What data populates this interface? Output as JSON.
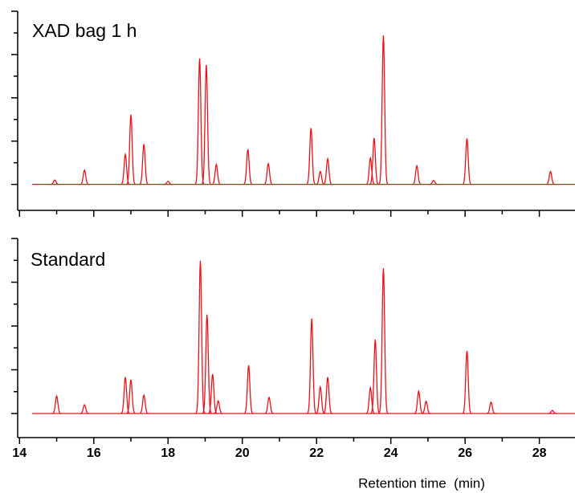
{
  "chart_data": [
    {
      "type": "peak",
      "title": "XAD bag 1 h",
      "color": "#e8141c",
      "xlim": [
        13.95,
        28.96
      ],
      "xticks": [
        14,
        16,
        18,
        20,
        22,
        24,
        26,
        28
      ],
      "ylim": [
        -0.6,
        4
      ],
      "yticks": [
        0,
        1,
        2,
        3,
        4
      ],
      "x": [
        14.95,
        15.75,
        16.85,
        17.0,
        17.35,
        18.0,
        18.85,
        19.03,
        19.3,
        20.15,
        20.7,
        21.85,
        22.1,
        22.3,
        23.45,
        23.55,
        23.8,
        24.7,
        25.15,
        26.05,
        28.3
      ],
      "values": [
        0.1,
        0.33,
        0.69,
        1.61,
        0.93,
        0.07,
        2.91,
        2.76,
        0.46,
        0.81,
        0.48,
        1.3,
        0.3,
        0.59,
        0.61,
        1.07,
        3.44,
        0.43,
        0.09,
        1.06,
        0.3
      ]
    },
    {
      "type": "peak",
      "title": "Standard",
      "color": "#e8141c",
      "xlabel": "Retention time  (min)",
      "xlim": [
        13.95,
        28.96
      ],
      "xticks": [
        14,
        16,
        18,
        20,
        22,
        24,
        26,
        28
      ],
      "ylim": [
        -0.55,
        4
      ],
      "yticks": [
        0,
        1,
        2,
        3,
        4
      ],
      "x": [
        15.0,
        15.75,
        16.85,
        17.0,
        17.35,
        18.87,
        19.05,
        19.2,
        19.35,
        20.17,
        20.72,
        21.87,
        22.1,
        22.3,
        23.45,
        23.58,
        23.8,
        24.75,
        24.95,
        26.05,
        26.7,
        28.35
      ],
      "values": [
        0.4,
        0.2,
        0.83,
        0.77,
        0.42,
        3.49,
        2.26,
        0.9,
        0.29,
        1.1,
        0.37,
        2.17,
        0.61,
        0.83,
        0.59,
        1.69,
        3.32,
        0.51,
        0.28,
        1.43,
        0.26,
        0.07
      ]
    }
  ]
}
